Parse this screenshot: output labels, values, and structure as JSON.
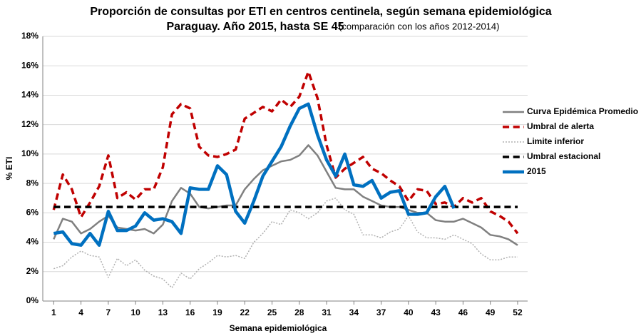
{
  "chart_data": {
    "type": "line",
    "title": "Proporción de consultas por ETI en centros centinela, según semana epidemiológica",
    "subtitle": "Paraguay. Año 2015, hasta SE 45",
    "annotation": "(comparación con los años 2012-2014)",
    "x_label": "Semana epidemiológica",
    "y_label": "% ETI",
    "x": [
      1,
      2,
      3,
      4,
      5,
      6,
      7,
      8,
      9,
      10,
      11,
      12,
      13,
      14,
      15,
      16,
      17,
      18,
      19,
      20,
      21,
      22,
      23,
      24,
      25,
      26,
      27,
      28,
      29,
      30,
      31,
      32,
      33,
      34,
      35,
      36,
      37,
      38,
      39,
      40,
      41,
      42,
      43,
      44,
      45,
      46,
      47,
      48,
      49,
      50,
      51,
      52
    ],
    "xlim": [
      -0.2,
      53.1
    ],
    "xticks": [
      1,
      4,
      7,
      10,
      13,
      16,
      19,
      22,
      25,
      28,
      31,
      34,
      37,
      40,
      43,
      46,
      49,
      52
    ],
    "ylim": [
      0,
      18
    ],
    "yticks": [
      {
        "value": 0,
        "label": "0%"
      },
      {
        "value": 2,
        "label": "2%"
      },
      {
        "value": 4,
        "label": "4%"
      },
      {
        "value": 6,
        "label": "6%"
      },
      {
        "value": 8,
        "label": "8%"
      },
      {
        "value": 10,
        "label": "10%"
      },
      {
        "value": 12,
        "label": "12%"
      },
      {
        "value": 14,
        "label": "14%"
      },
      {
        "value": 16,
        "label": "16%"
      },
      {
        "value": 18,
        "label": "18%"
      }
    ],
    "grid": true,
    "legend": "right",
    "series": [
      {
        "name": "Curva Epidémica Promedio",
        "color": "#808080",
        "linestyle": "solid",
        "width": 2.5,
        "values": [
          4.2,
          5.6,
          5.4,
          4.6,
          4.9,
          5.4,
          5.8,
          5.0,
          4.9,
          4.8,
          4.9,
          4.6,
          5.2,
          6.8,
          7.7,
          7.3,
          6.4,
          6.3,
          6.4,
          6.5,
          6.5,
          7.6,
          8.3,
          8.9,
          9.2,
          9.5,
          9.6,
          9.9,
          10.6,
          9.9,
          8.8,
          7.7,
          7.6,
          7.6,
          7.1,
          6.8,
          6.5,
          6.4,
          6.4,
          6.2,
          6.0,
          6.0,
          5.5,
          5.4,
          5.4,
          5.6,
          5.3,
          5.0,
          4.5,
          4.4,
          4.2,
          3.8
        ]
      },
      {
        "name": "Umbral de alerta",
        "color": "#c00000",
        "linestyle": "dashed",
        "width": 3.5,
        "values": [
          6.2,
          8.6,
          7.6,
          5.7,
          6.7,
          7.8,
          9.9,
          7.0,
          7.4,
          6.9,
          7.6,
          7.6,
          9.1,
          12.7,
          13.4,
          13.1,
          10.5,
          9.9,
          9.8,
          10.0,
          10.3,
          12.4,
          12.8,
          13.2,
          12.9,
          13.7,
          13.2,
          13.9,
          15.6,
          13.8,
          10.6,
          8.4,
          9.0,
          9.4,
          9.8,
          9.0,
          8.7,
          8.2,
          7.8,
          6.8,
          7.6,
          7.5,
          6.6,
          6.7,
          6.4,
          7.0,
          6.7,
          7.0,
          6.1,
          5.8,
          5.4,
          4.6
        ]
      },
      {
        "name": "Limite inferior",
        "color": "#b0b0b0",
        "linestyle": "dotted",
        "width": 1.5,
        "values": [
          2.2,
          2.4,
          3.0,
          3.4,
          3.1,
          3.0,
          1.6,
          2.9,
          2.4,
          2.8,
          2.1,
          1.7,
          1.5,
          0.9,
          1.9,
          1.5,
          2.2,
          2.6,
          3.1,
          3.0,
          3.1,
          2.9,
          4.0,
          4.6,
          5.4,
          5.2,
          6.2,
          6.0,
          5.6,
          6.0,
          6.8,
          7.0,
          6.2,
          5.9,
          4.5,
          4.5,
          4.3,
          4.7,
          4.9,
          5.8,
          4.7,
          4.3,
          4.3,
          4.2,
          4.5,
          4.2,
          3.9,
          3.2,
          2.8,
          2.8,
          3.0,
          3.0
        ]
      },
      {
        "name": "Umbral estacional",
        "color": "#000000",
        "linestyle": "dashed",
        "width": 3.5,
        "values": [
          6.4,
          6.4,
          6.4,
          6.4,
          6.4,
          6.4,
          6.4,
          6.4,
          6.4,
          6.4,
          6.4,
          6.4,
          6.4,
          6.4,
          6.4,
          6.4,
          6.4,
          6.4,
          6.4,
          6.4,
          6.4,
          6.4,
          6.4,
          6.4,
          6.4,
          6.4,
          6.4,
          6.4,
          6.4,
          6.4,
          6.4,
          6.4,
          6.4,
          6.4,
          6.4,
          6.4,
          6.4,
          6.4,
          6.4,
          6.4,
          6.4,
          6.4,
          6.4,
          6.4,
          6.4,
          6.4,
          6.4,
          6.4,
          6.4,
          6.4,
          6.4,
          6.4
        ]
      },
      {
        "name": "2015",
        "color": "#0070c0",
        "linestyle": "solid",
        "width": 4.5,
        "values": [
          4.6,
          4.7,
          3.9,
          3.8,
          4.6,
          3.8,
          6.1,
          4.8,
          4.8,
          5.1,
          6.0,
          5.5,
          5.6,
          5.4,
          4.6,
          7.7,
          7.6,
          7.6,
          9.2,
          8.6,
          6.1,
          5.3,
          6.8,
          8.5,
          9.5,
          10.5,
          11.9,
          13.1,
          13.4,
          11.3,
          9.6,
          8.5,
          10.0,
          7.9,
          7.8,
          8.2,
          7.0,
          7.4,
          7.5,
          5.9,
          5.9,
          6.0,
          7.1,
          7.8,
          6.3,
          null,
          null,
          null,
          null,
          null,
          null,
          null
        ]
      }
    ]
  }
}
